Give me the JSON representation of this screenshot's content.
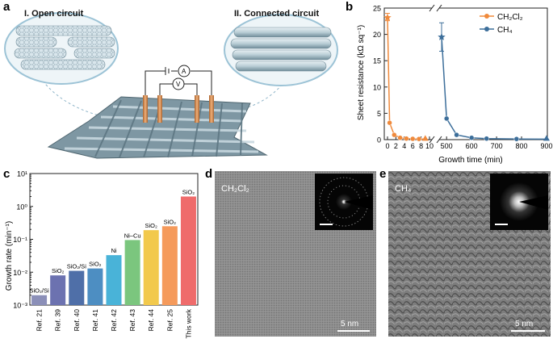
{
  "panel_labels": {
    "a": "a",
    "b": "b",
    "c": "c",
    "d": "d",
    "e": "e"
  },
  "schematic": {
    "left_title": "I. Open circuit",
    "right_title": "II. Connected circuit",
    "ammeter_symbol": "A",
    "voltmeter_symbol": "V"
  },
  "chart_data": [
    {
      "id": "b",
      "type": "line",
      "ylabel": "Sheet resistance (kΩ sq⁻¹)",
      "xlabel": "Growth time (min)",
      "ylim": [
        0,
        25
      ],
      "yticks": [
        "0",
        "5",
        "10",
        "15",
        "20",
        "25"
      ],
      "xticks_left": [
        "0",
        "2",
        "4",
        "6",
        "8",
        "10"
      ],
      "xticks_right": [
        "500",
        "600",
        "700",
        "800",
        "900"
      ],
      "broken_x_axis": true,
      "series": [
        {
          "name": "CH₂Cl₂",
          "color": "#F08A3C",
          "points": [
            [
              0,
              23.2
            ],
            [
              0.5,
              3.2
            ],
            [
              1.6,
              0.9
            ],
            [
              3,
              0.35
            ],
            [
              4.5,
              0.2
            ],
            [
              6,
              0.15
            ],
            [
              7.5,
              0.12
            ],
            [
              9,
              0.1
            ]
          ],
          "error_bar_at_first": [
            22.6,
            24.0
          ]
        },
        {
          "name": "CH₄",
          "color": "#3C6E9A",
          "points": [
            [
              480,
              19.5
            ],
            [
              500,
              4.0
            ],
            [
              540,
              0.9
            ],
            [
              600,
              0.35
            ],
            [
              660,
              0.2
            ],
            [
              780,
              0.12
            ],
            [
              900,
              0.1
            ]
          ],
          "error_bar_at_first": [
            16.8,
            22.2
          ]
        }
      ]
    },
    {
      "id": "c",
      "type": "bar",
      "ylabel": "Growth rate (min⁻¹)",
      "yscale": "log",
      "ylim": [
        0.001,
        10
      ],
      "yticks": [
        "10⁻³",
        "10⁻²",
        "10⁻¹",
        "10⁰",
        "10¹"
      ],
      "categories": [
        "Ref. 21",
        "Ref. 39",
        "Ref. 40",
        "Ref. 41",
        "Ref. 42",
        "Ref. 43",
        "Ref. 44",
        "Ref. 25",
        "This work"
      ],
      "values": [
        0.002,
        0.008,
        0.011,
        0.013,
        0.033,
        0.095,
        0.19,
        0.25,
        2.0
      ],
      "bar_labels": [
        "SiO₂/Si",
        "SiO₂",
        "SiO₂/Si",
        "SiO₂",
        "Ni",
        "Ni–Cu",
        "SiO₂",
        "SiO₂",
        "SiO₂"
      ],
      "colors": [
        "#8B8FB8",
        "#6C72B0",
        "#4F6FA8",
        "#4D8EC2",
        "#49B3D8",
        "#7BC67E",
        "#F2C94C",
        "#F59A5B",
        "#EF6B6B"
      ]
    }
  ],
  "tem": {
    "d": {
      "label": "CH₂Cl₂",
      "scale": "5 nm"
    },
    "e": {
      "label": "CH₄",
      "scale": "5 nm"
    }
  }
}
